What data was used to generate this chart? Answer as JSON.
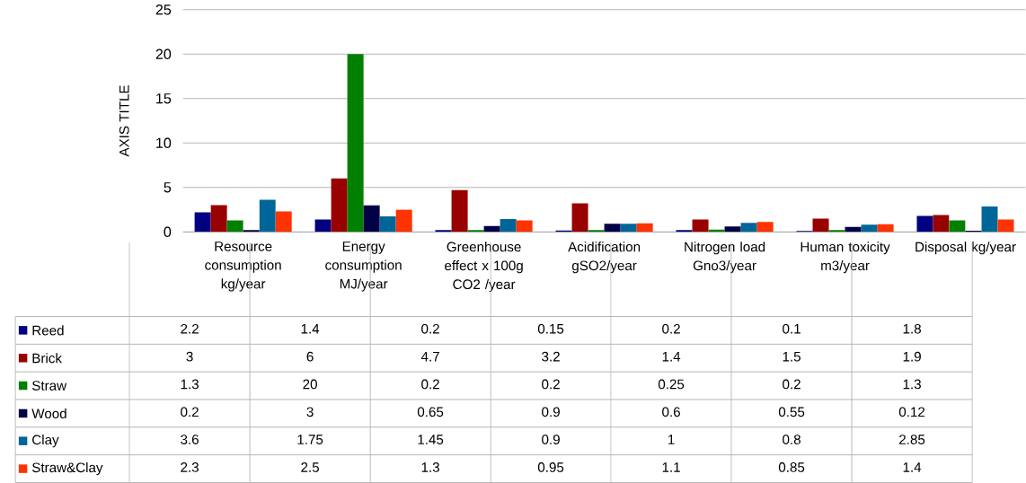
{
  "chart_data": {
    "type": "bar",
    "ylabel": "AXIS TITLE",
    "categories": [
      "Resource consumption kg/year",
      "Energy consumption MJ/year",
      "Greenhouse effect x 100g CO2 /year",
      "Acidification gSO2/year",
      "Nitrogen load Gno3/year",
      "Human toxicity m3/year",
      "Disposal kg/year"
    ],
    "series": [
      {
        "name": "Reed",
        "color": "#000080",
        "values": [
          2.2,
          1.4,
          0.2,
          0.15,
          0.2,
          0.1,
          1.8
        ]
      },
      {
        "name": "Brick",
        "color": "#990000",
        "values": [
          3,
          6,
          4.7,
          3.2,
          1.4,
          1.5,
          1.9
        ]
      },
      {
        "name": "Straw",
        "color": "#008000",
        "values": [
          1.3,
          20,
          0.2,
          0.2,
          0.25,
          0.2,
          1.3
        ]
      },
      {
        "name": "Wood",
        "color": "#000046",
        "values": [
          0.2,
          3,
          0.65,
          0.9,
          0.6,
          0.55,
          0.12
        ]
      },
      {
        "name": "Clay",
        "color": "#006699",
        "values": [
          3.6,
          1.75,
          1.45,
          0.9,
          1,
          0.8,
          2.85
        ]
      },
      {
        "name": "Straw&Clay",
        "color": "#ff3300",
        "values": [
          2.3,
          2.5,
          1.3,
          0.95,
          1.1,
          0.85,
          1.4
        ]
      }
    ],
    "ylim": [
      0,
      25
    ],
    "yticks": [
      0,
      5,
      10,
      15,
      20,
      25
    ],
    "grid": "y",
    "legend": "bottom",
    "data_labels": true
  }
}
